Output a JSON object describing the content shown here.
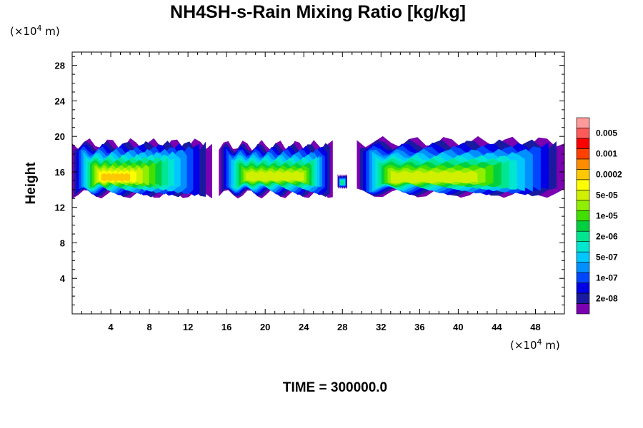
{
  "chart_data": {
    "type": "heatmap",
    "title": "NH4SH-s-Rain Mixing Ratio [kg/kg]",
    "xlabel": "",
    "ylabel": "Height",
    "x_unit_base": "(×10",
    "x_unit_exp": "4",
    "x_unit_tail": " m)",
    "y_unit_base": "(×10",
    "y_unit_exp": "4",
    "y_unit_tail": " m)",
    "xlim": [
      0,
      51
    ],
    "ylim": [
      0,
      29.5
    ],
    "x_ticks": [
      4,
      8,
      12,
      16,
      20,
      24,
      28,
      32,
      36,
      40,
      44,
      48
    ],
    "y_ticks": [
      4,
      8,
      12,
      16,
      20,
      24,
      28
    ],
    "x_tick_labels": [
      "4",
      "8",
      "12",
      "16",
      "20",
      "24",
      "28",
      "32",
      "36",
      "40",
      "44",
      "48"
    ],
    "y_tick_labels": [
      "4",
      "8",
      "12",
      "16",
      "20",
      "24",
      "28"
    ],
    "colorbar": {
      "levels": [
        "2e-08",
        "",
        "1e-07",
        "",
        "5e-07",
        "",
        "2e-06",
        "",
        "1e-05",
        "",
        "5e-05",
        "",
        "0.0002",
        "",
        "0.001",
        "",
        "0.005",
        ""
      ],
      "labels": [
        "2e-08",
        "1e-07",
        "5e-07",
        "2e-06",
        "1e-05",
        "5e-05",
        "0.0002",
        "0.001",
        "0.005"
      ],
      "colors": [
        "#7a00b0",
        "#1a1aa0",
        "#0000e6",
        "#0046ff",
        "#0090ff",
        "#00c8ff",
        "#00e6d0",
        "#00e690",
        "#00d040",
        "#40e000",
        "#90ee00",
        "#d0f000",
        "#ffff00",
        "#ffc800",
        "#ff8c00",
        "#ff4000",
        "#ff0000",
        "#ff5a5a",
        "#ff9a9a"
      ]
    },
    "cloud_bands": [
      {
        "x_range": [
          0,
          14.5
        ],
        "y_range": [
          13.5,
          19.2
        ],
        "core_x": [
          3,
          6
        ],
        "core_y": [
          15,
          15.8
        ],
        "core_level": "0.0002"
      },
      {
        "x_range": [
          15.2,
          27
        ],
        "y_range": [
          13.5,
          19.0
        ],
        "core_x": [
          18,
          24
        ],
        "core_y": [
          15,
          16
        ],
        "core_level": "5e-05"
      },
      {
        "x_range": [
          27.5,
          28.5
        ],
        "y_range": [
          14.2,
          15.6
        ],
        "core_x": [
          27.8,
          28.2
        ],
        "core_y": [
          14.6,
          15.0
        ],
        "core_level": "2e-06"
      },
      {
        "x_range": [
          29.5,
          51
        ],
        "y_range": [
          13.6,
          19.4
        ],
        "core_x": [
          33,
          42
        ],
        "core_y": [
          14.8,
          16
        ],
        "core_level": "5e-05"
      }
    ]
  },
  "footer": {
    "label": "TIME = 300000.0"
  }
}
